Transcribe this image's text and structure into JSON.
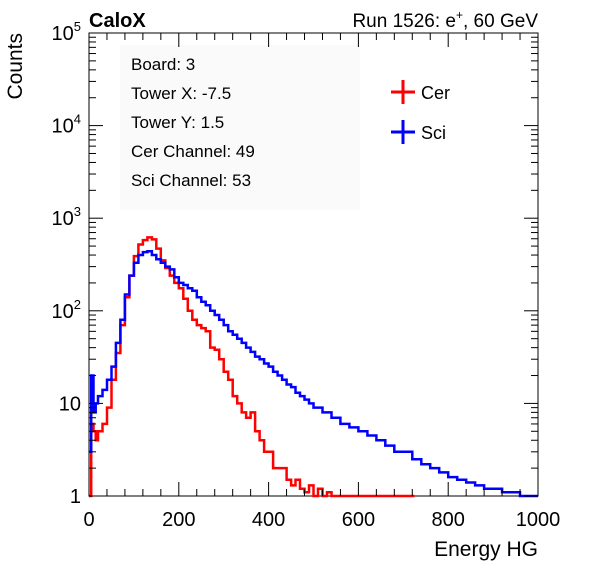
{
  "chart_data": {
    "type": "line",
    "title_left": "CaloX",
    "title_right_prefix": "Run 1526: e",
    "title_right_sup": "+",
    "title_right_suffix": ", 60 GeV",
    "xlabel": "Energy HG",
    "ylabel": "Counts",
    "xlim": [
      0,
      1000
    ],
    "ylim": [
      1,
      100000
    ],
    "yscale": "log",
    "x_ticks": [
      {
        "value": 0,
        "label": "0"
      },
      {
        "value": 200,
        "label": "200"
      },
      {
        "value": 400,
        "label": "400"
      },
      {
        "value": 600,
        "label": "600"
      },
      {
        "value": 800,
        "label": "800"
      },
      {
        "value": 1000,
        "label": "1000"
      }
    ],
    "y_ticks": [
      {
        "value": 1,
        "base": "1",
        "exp": ""
      },
      {
        "value": 10,
        "base": "10",
        "exp": ""
      },
      {
        "value": 100,
        "base": "10",
        "exp": "2"
      },
      {
        "value": 1000,
        "base": "10",
        "exp": "3"
      },
      {
        "value": 10000,
        "base": "10",
        "exp": "4"
      },
      {
        "value": 100000,
        "base": "10",
        "exp": "5"
      }
    ],
    "info_box": [
      "Board: 3",
      "Tower X: -7.5",
      "Tower Y: 1.5",
      "Cer Channel: 49",
      "Sci Channel: 53"
    ],
    "legend_position": "top-right",
    "series": [
      {
        "name": "Cer",
        "color": "#ff0000",
        "x": [
          0,
          5,
          10,
          15,
          20,
          30,
          40,
          50,
          60,
          70,
          80,
          90,
          100,
          110,
          120,
          130,
          140,
          150,
          160,
          170,
          180,
          190,
          200,
          210,
          220,
          230,
          240,
          250,
          260,
          270,
          280,
          290,
          300,
          310,
          320,
          330,
          340,
          350,
          360,
          370,
          380,
          390,
          400,
          410,
          420,
          430,
          440,
          450,
          460,
          470,
          480,
          490,
          500,
          510,
          520,
          530,
          540,
          560,
          580,
          600,
          620,
          640,
          660,
          680,
          700,
          720
        ],
        "y": [
          1,
          6,
          5,
          4,
          5,
          6,
          9,
          18,
          35,
          70,
          140,
          240,
          390,
          520,
          580,
          620,
          590,
          470,
          350,
          290,
          240,
          200,
          175,
          135,
          100,
          80,
          70,
          65,
          60,
          40,
          38,
          30,
          22,
          18,
          12,
          10,
          8,
          7,
          8,
          5,
          4,
          3,
          3,
          2,
          2,
          2,
          1.5,
          1.3,
          1.5,
          1.2,
          1.1,
          1.3,
          1.0,
          1.2,
          1.0,
          1.1,
          1,
          1,
          1,
          1,
          1,
          1,
          1,
          1,
          1,
          1
        ]
      },
      {
        "name": "Sci",
        "color": "#0000ff",
        "x": [
          0,
          5,
          10,
          15,
          20,
          30,
          40,
          50,
          60,
          70,
          80,
          90,
          100,
          110,
          120,
          130,
          140,
          150,
          160,
          170,
          180,
          190,
          200,
          210,
          220,
          230,
          240,
          250,
          260,
          270,
          280,
          290,
          300,
          310,
          320,
          330,
          340,
          350,
          360,
          370,
          380,
          390,
          400,
          410,
          420,
          430,
          440,
          450,
          460,
          470,
          480,
          490,
          500,
          520,
          540,
          560,
          580,
          600,
          620,
          640,
          660,
          680,
          700,
          720,
          740,
          760,
          780,
          800,
          820,
          840,
          860,
          880,
          900,
          920,
          940,
          960,
          980,
          1000
        ],
        "y": [
          3,
          20,
          8,
          10,
          12,
          14,
          18,
          25,
          45,
          80,
          150,
          240,
          330,
          400,
          430,
          440,
          400,
          360,
          330,
          300,
          280,
          230,
          200,
          190,
          175,
          165,
          140,
          125,
          115,
          100,
          90,
          80,
          70,
          60,
          55,
          50,
          45,
          40,
          36,
          32,
          30,
          27,
          25,
          22,
          20,
          18,
          16,
          15,
          13,
          12,
          11,
          10,
          9,
          8,
          7,
          6,
          5.5,
          5,
          4.5,
          4,
          3.5,
          3,
          3,
          2.5,
          2.2,
          2,
          1.8,
          1.6,
          1.5,
          1.4,
          1.3,
          1.2,
          1.2,
          1.1,
          1.1,
          1.0,
          1.0,
          1.0
        ]
      }
    ]
  }
}
